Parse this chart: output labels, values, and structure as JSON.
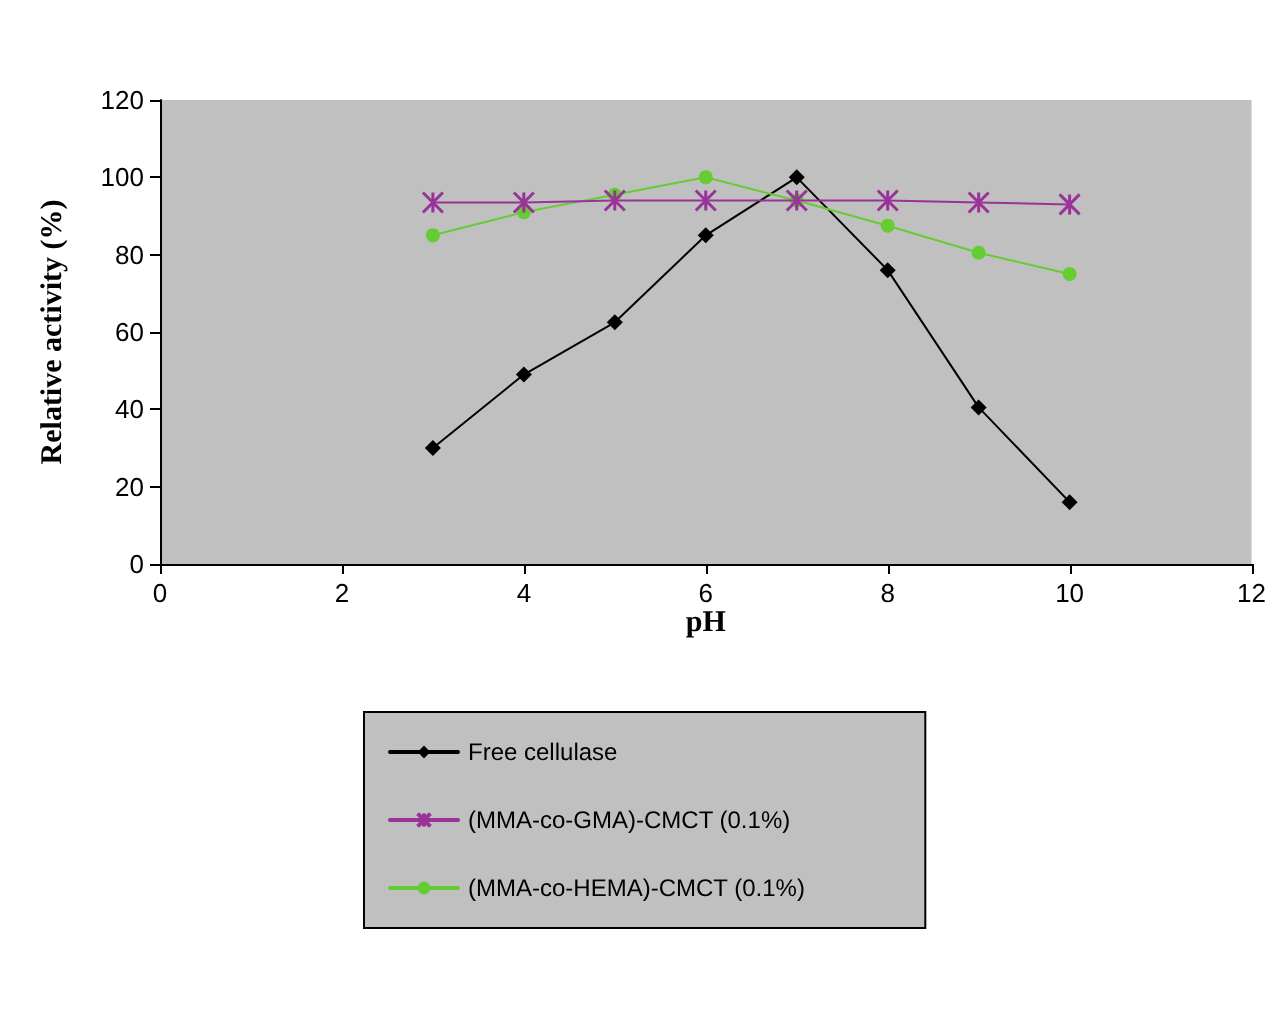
{
  "chart_data": {
    "type": "line",
    "xlabel": "pH",
    "ylabel": "Relative activity (%)",
    "x": [
      3,
      4,
      5,
      6,
      7,
      8,
      9,
      10
    ],
    "series": [
      {
        "name": "Free cellulase",
        "color": "#000000",
        "marker": "diamond",
        "values": [
          30,
          49,
          62.5,
          85,
          100,
          76,
          40.5,
          16
        ]
      },
      {
        "name": "(MMA-co-GMA)-CMCT (0.1%)",
        "color": "#993399",
        "marker": "cross",
        "values": [
          93.5,
          93.5,
          94,
          94,
          94,
          94,
          93.5,
          93
        ]
      },
      {
        "name": "(MMA-co-HEMA)-CMCT (0.1%)",
        "color": "#66cc33",
        "marker": "circle",
        "values": [
          85,
          91,
          95.5,
          100,
          94,
          87.5,
          80.5,
          75
        ]
      }
    ],
    "xlim": [
      0,
      12
    ],
    "xticks": [
      0,
      2,
      4,
      6,
      8,
      10,
      12
    ],
    "ylim": [
      0,
      120
    ],
    "yticks": [
      0,
      20,
      40,
      60,
      80,
      100,
      120
    ],
    "grid": false,
    "legend": "bottom",
    "line_style": "solid"
  }
}
